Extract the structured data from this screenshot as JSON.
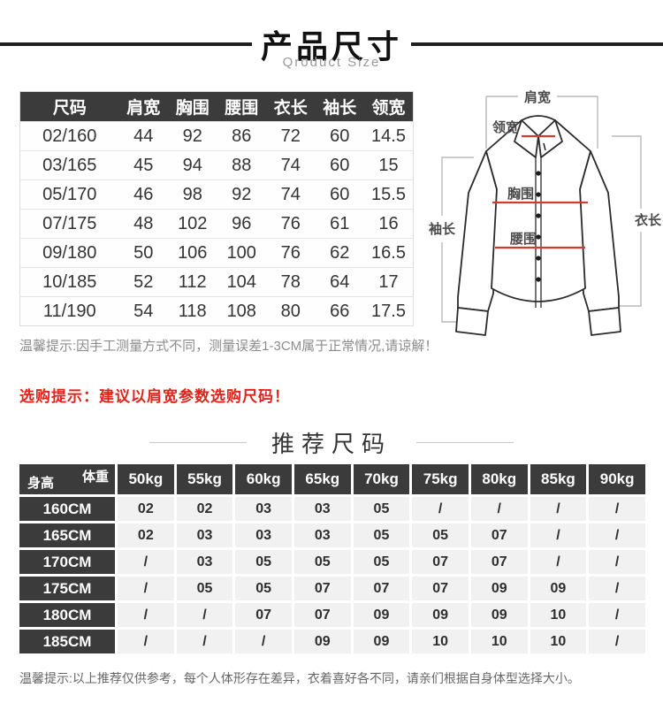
{
  "page": {
    "title": "产品尺寸",
    "subtitle": "Qroduct Size",
    "section2_title": "推荐尺码"
  },
  "colors": {
    "table_header_bg": "#3b3b3b",
    "rec_cell_bg": "#f1f1f1",
    "accent_red": "#e0231b",
    "diagram_line_red": "#d43a31"
  },
  "size_table": {
    "headers": [
      "尺码",
      "肩宽",
      "胸围",
      "腰围",
      "衣长",
      "袖长",
      "领宽"
    ],
    "rows": [
      [
        "02/160",
        "44",
        "92",
        "86",
        "72",
        "60",
        "14.5"
      ],
      [
        "03/165",
        "45",
        "94",
        "88",
        "74",
        "60",
        "15"
      ],
      [
        "05/170",
        "46",
        "98",
        "92",
        "74",
        "60",
        "15.5"
      ],
      [
        "07/175",
        "48",
        "102",
        "96",
        "76",
        "61",
        "16"
      ],
      [
        "09/180",
        "50",
        "106",
        "100",
        "76",
        "62",
        "16.5"
      ],
      [
        "10/185",
        "52",
        "112",
        "104",
        "78",
        "64",
        "17"
      ],
      [
        "11/190",
        "54",
        "118",
        "108",
        "80",
        "66",
        "17.5"
      ]
    ]
  },
  "diagram": {
    "labels": {
      "shoulder": "肩宽",
      "collar": "领宽",
      "chest": "胸围",
      "waist": "腰围",
      "sleeve": "袖长",
      "length": "衣长"
    }
  },
  "notes": {
    "measure_tip": "温馨提示:因手工测量方式不同，测量误差1-3CM属于正常情况,请谅解！",
    "buy_tip": "选购提示：建议以肩宽参数选购尺码！"
  },
  "recommend_table": {
    "corner": {
      "top": "体重",
      "bottom": "身高"
    },
    "weight_headers": [
      "50kg",
      "55kg",
      "60kg",
      "65kg",
      "70kg",
      "75kg",
      "80kg",
      "85kg",
      "90kg"
    ],
    "rows": [
      {
        "height": "160CM",
        "values": [
          "02",
          "02",
          "03",
          "03",
          "05",
          "/",
          "/",
          "/",
          "/"
        ]
      },
      {
        "height": "165CM",
        "values": [
          "02",
          "03",
          "03",
          "03",
          "05",
          "05",
          "07",
          "/",
          "/"
        ]
      },
      {
        "height": "170CM",
        "values": [
          "/",
          "03",
          "05",
          "05",
          "05",
          "07",
          "07",
          "/",
          "/"
        ]
      },
      {
        "height": "175CM",
        "values": [
          "/",
          "05",
          "05",
          "07",
          "07",
          "07",
          "09",
          "09",
          "/"
        ]
      },
      {
        "height": "180CM",
        "values": [
          "/",
          "/",
          "07",
          "07",
          "09",
          "09",
          "09",
          "10",
          "/"
        ]
      },
      {
        "height": "185CM",
        "values": [
          "/",
          "/",
          "/",
          "09",
          "09",
          "10",
          "10",
          "10",
          "/"
        ]
      }
    ]
  },
  "footer_note": "温馨提示:以上推荐仅供参考，每个人体形存在差异，衣着喜好各不同，请亲们根据自身体型选择大小。"
}
